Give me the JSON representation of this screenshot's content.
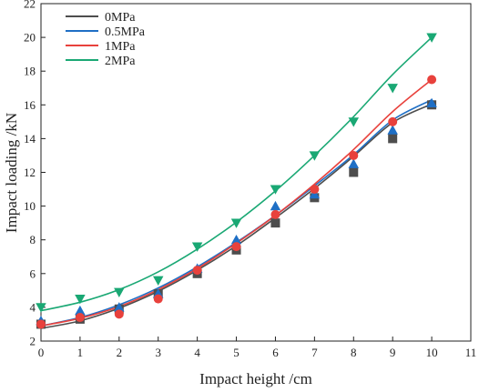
{
  "chart_data": {
    "type": "scatter",
    "title": "",
    "xlabel": "Impact height /cm",
    "ylabel": "Impact loading /kN",
    "xlim": [
      0,
      11
    ],
    "ylim": [
      2,
      22
    ],
    "xticks": [
      0,
      1,
      2,
      3,
      4,
      5,
      6,
      7,
      8,
      9,
      10,
      11
    ],
    "yticks": [
      2,
      4,
      6,
      8,
      10,
      12,
      14,
      16,
      18,
      20,
      22
    ],
    "grid": false,
    "legend_position": "top-left",
    "x": [
      0,
      1,
      2,
      3,
      4,
      5,
      6,
      7,
      8,
      9,
      10
    ],
    "series": [
      {
        "name": "0MPa",
        "color": "#4d4d4d",
        "marker": "square",
        "values": [
          3.0,
          3.3,
          3.9,
          4.8,
          6.0,
          7.4,
          9.0,
          10.5,
          12.0,
          14.0,
          16.0
        ],
        "fit": [
          2.75,
          3.2,
          3.95,
          4.95,
          6.2,
          7.65,
          9.3,
          11.05,
          12.95,
          14.95,
          16.05
        ]
      },
      {
        "name": "0.5MPa",
        "color": "#1f6fc5",
        "marker": "triangle-up",
        "values": [
          3.2,
          3.8,
          4.0,
          4.8,
          6.3,
          8.0,
          10.0,
          10.7,
          12.5,
          14.5,
          16.1
        ],
        "fit": [
          2.9,
          3.4,
          4.15,
          5.15,
          6.4,
          7.85,
          9.45,
          11.2,
          13.05,
          15.1,
          16.3
        ]
      },
      {
        "name": "1MPa",
        "color": "#e8413c",
        "marker": "circle",
        "values": [
          3.0,
          3.4,
          3.6,
          4.5,
          6.2,
          7.6,
          9.5,
          11.0,
          13.0,
          15.0,
          17.5
        ],
        "fit": [
          2.9,
          3.35,
          4.05,
          5.05,
          6.3,
          7.8,
          9.45,
          11.3,
          13.35,
          15.6,
          17.5
        ]
      },
      {
        "name": "2MPa",
        "color": "#1aa874",
        "marker": "triangle-down",
        "values": [
          4.0,
          4.5,
          4.9,
          5.6,
          7.6,
          9.0,
          11.0,
          13.0,
          15.0,
          17.0,
          20.0
        ],
        "fit": [
          3.8,
          4.3,
          5.05,
          6.1,
          7.45,
          9.05,
          10.9,
          13.0,
          15.3,
          17.8,
          20.0
        ]
      }
    ]
  }
}
